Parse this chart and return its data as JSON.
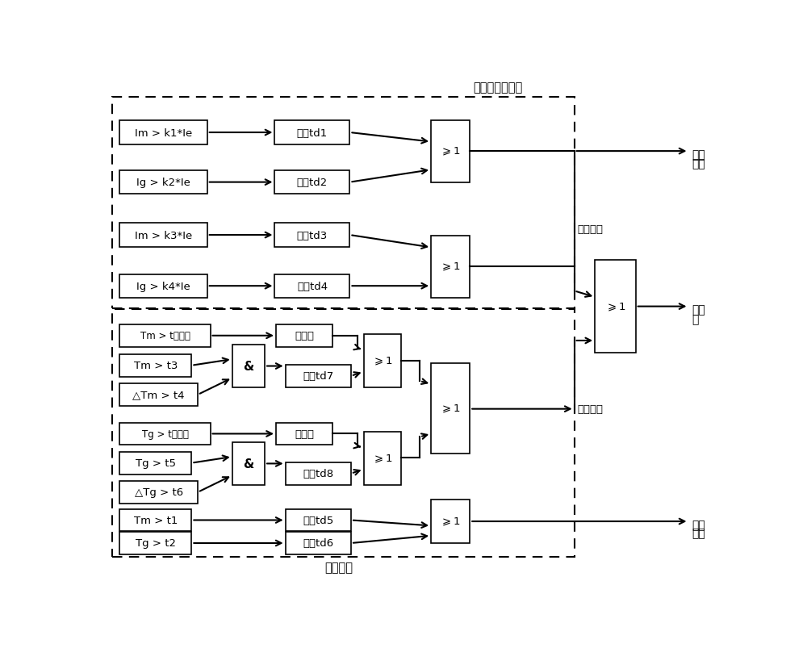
{
  "title_top": "过电流速断判据",
  "title_bottom": "温度判据",
  "label_overcurrent_alarm_1": "过流",
  "label_overcurrent_alarm_2": "报警",
  "label_overcurrent_action": "过流动作",
  "label_overtemp_action": "过温动作",
  "label_trip_1": "跳开",
  "label_trip_2": "关",
  "label_overtemp_alarm_1": "过温",
  "label_overtemp_alarm_2": "报警",
  "bg_color": "#ffffff"
}
